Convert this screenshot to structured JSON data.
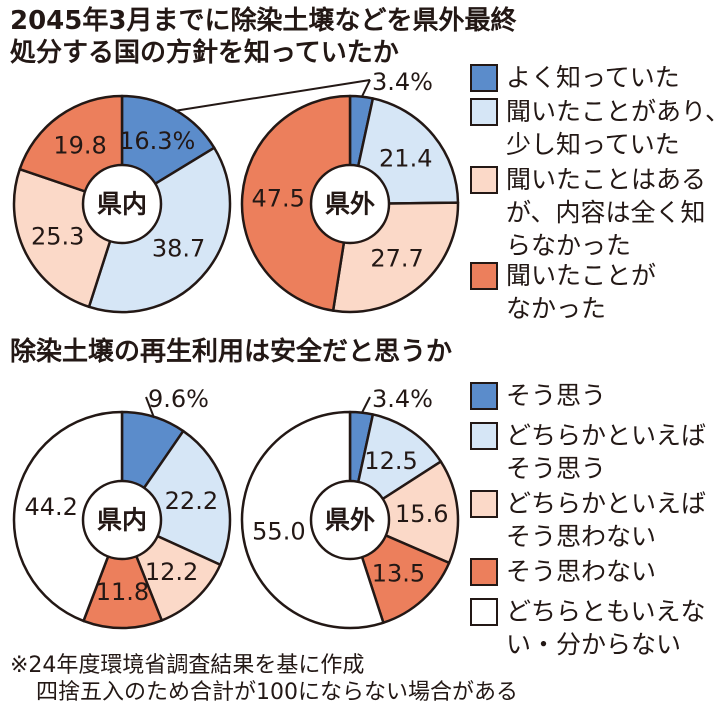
{
  "titles": {
    "q1_line1": "2045年3月までに除染土壌などを県外最終",
    "q1_line2": "処分する国の方針を知っていたか",
    "q2": "除染土壌の再生利用は安全だと思うか"
  },
  "colors": {
    "c1": "#5b8ccb",
    "c2": "#d6e6f6",
    "c3": "#fbd9c8",
    "c4": "#ec7f5c",
    "c5": "#ffffff",
    "stroke": "#231815"
  },
  "legend1": [
    {
      "lines": [
        "よく知っていた"
      ]
    },
    {
      "lines": [
        "聞いたことがあり、",
        "少し知っていた"
      ]
    },
    {
      "lines": [
        "聞いたことはある",
        "が、内容は全く知",
        "らなかった"
      ]
    },
    {
      "lines": [
        "聞いたことが",
        "なかった"
      ]
    }
  ],
  "legend2": [
    {
      "lines": [
        "そう思う"
      ]
    },
    {
      "lines": [
        "どちらかといえば",
        "そう思う"
      ]
    },
    {
      "lines": [
        "どちらかといえば",
        "そう思わない"
      ]
    },
    {
      "lines": [
        "そう思わない"
      ]
    },
    {
      "lines": [
        "どちらともいえな",
        "い・分からない"
      ]
    }
  ],
  "notes": {
    "line1": "※24年度環境省調査結果を基に作成",
    "line2": "四捨五入のため合計が100にならない場合がある"
  },
  "chart_data": [
    {
      "type": "pie",
      "center_label": "県内",
      "values": [
        16.3,
        38.7,
        25.3,
        19.8
      ],
      "labels": [
        "16.3%",
        "38.7",
        "25.3",
        "19.8"
      ]
    },
    {
      "type": "pie",
      "center_label": "県外",
      "values": [
        3.4,
        21.4,
        27.7,
        47.5
      ],
      "labels": [
        "3.4%",
        "21.4",
        "27.7",
        "47.5"
      ]
    },
    {
      "type": "pie",
      "center_label": "県内",
      "values": [
        9.6,
        22.2,
        12.2,
        11.8,
        44.2
      ],
      "labels": [
        "9.6%",
        "22.2",
        "12.2",
        "11.8",
        "44.2"
      ]
    },
    {
      "type": "pie",
      "center_label": "県外",
      "values": [
        3.4,
        12.5,
        15.6,
        13.5,
        55.0
      ],
      "labels": [
        "3.4%",
        "12.5",
        "15.6",
        "13.5",
        "55.0"
      ]
    }
  ]
}
